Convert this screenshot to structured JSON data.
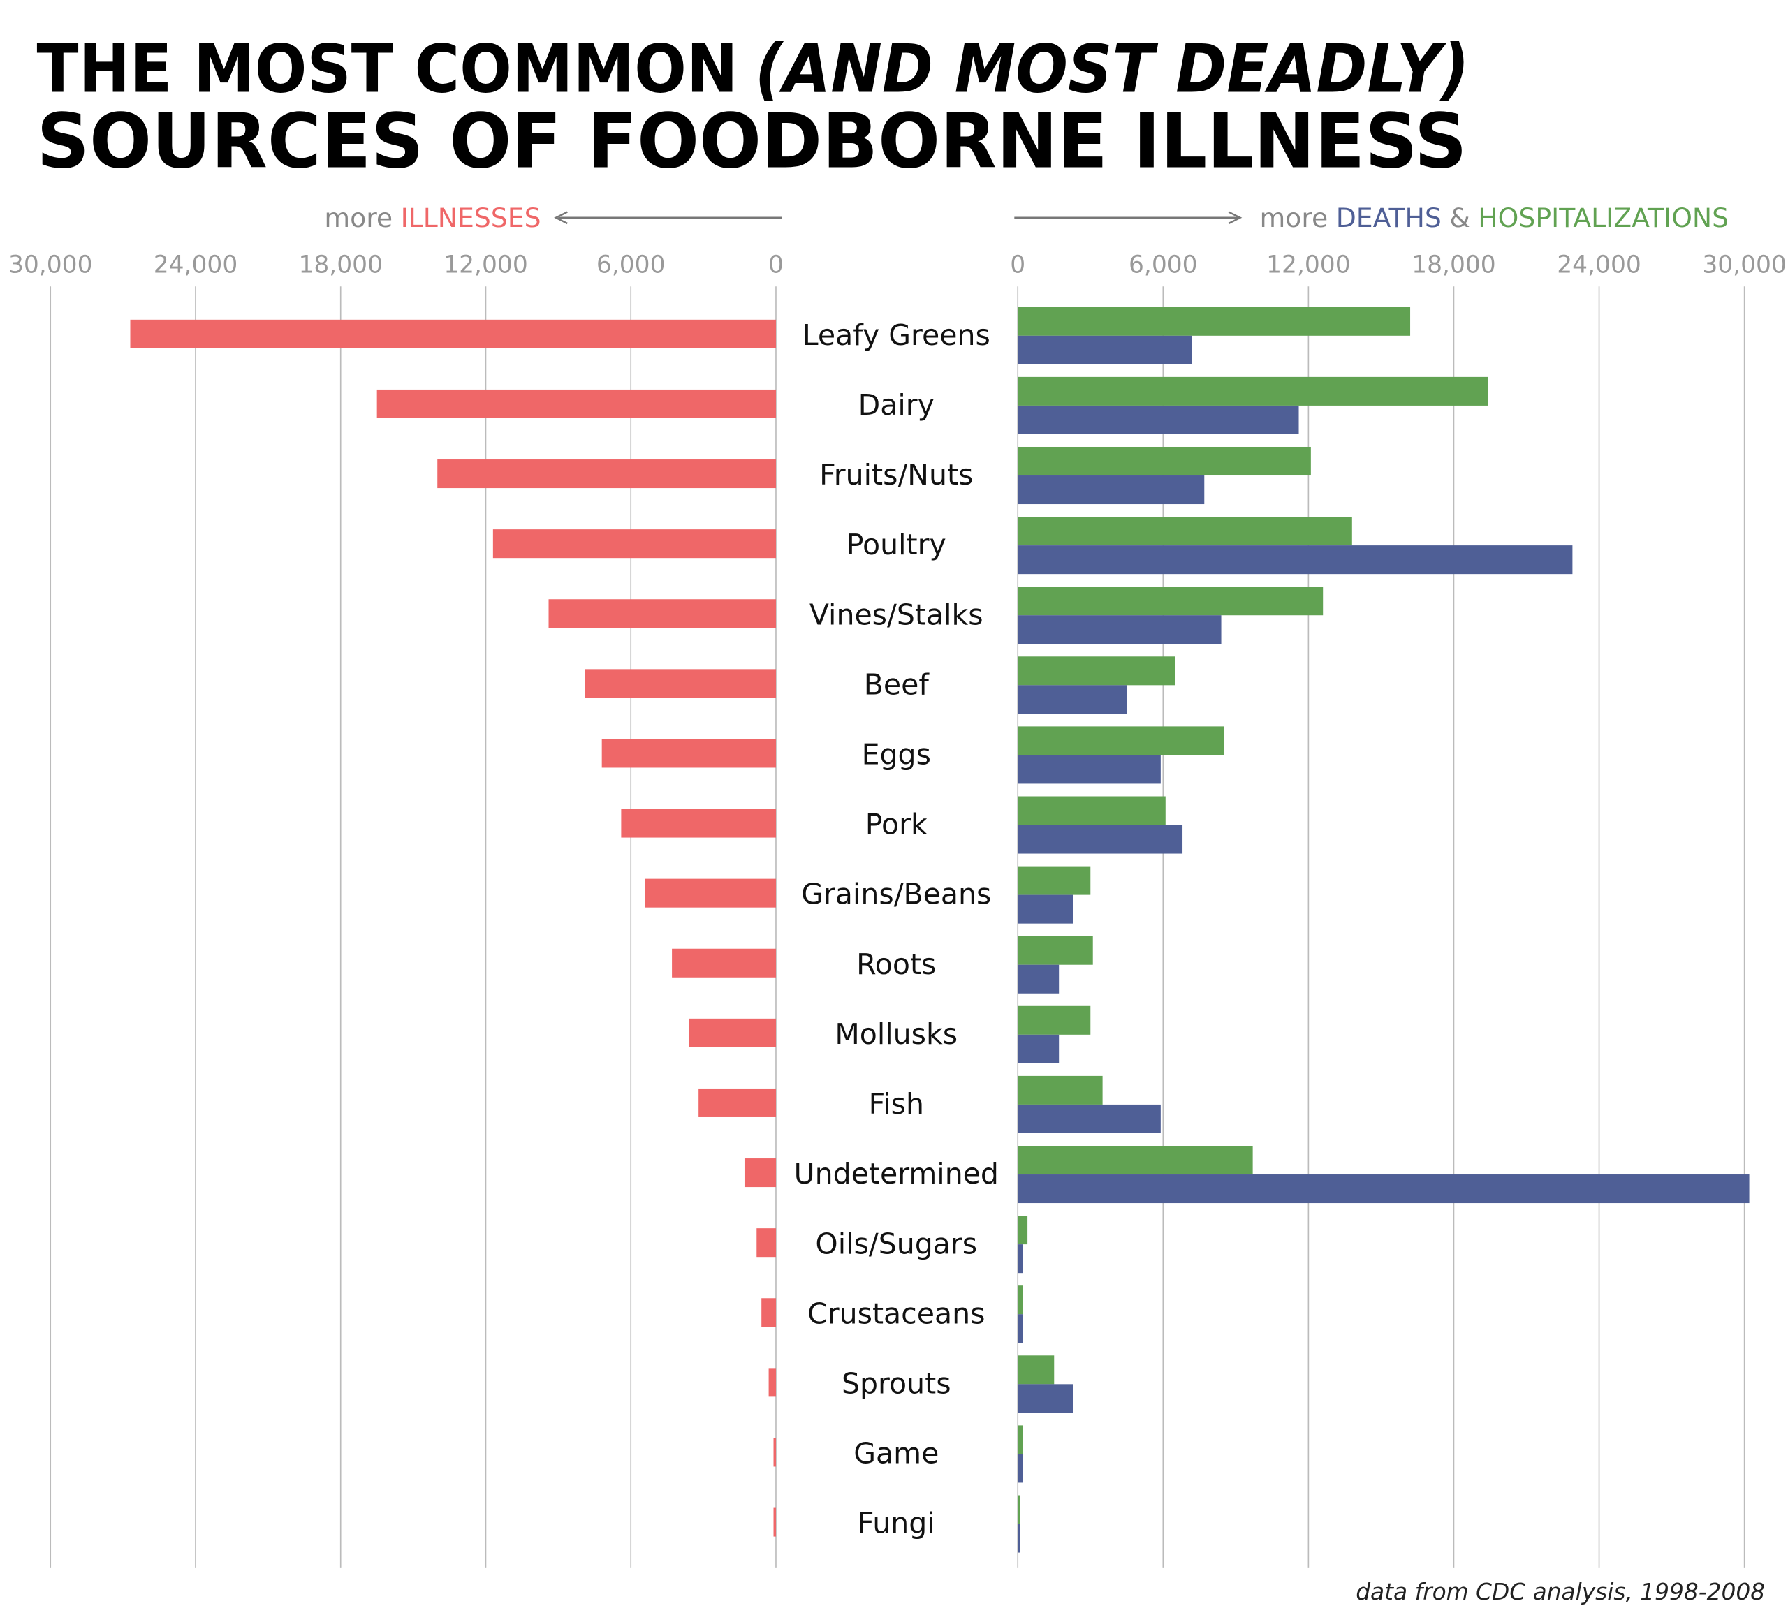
{
  "chart_data": [
    {
      "type": "bar",
      "orientation": "horizontal",
      "direction": "left",
      "title_line1": "THE MOST COMMON",
      "title_line1_italic": "(AND MOST DEADLY)",
      "title_line2": "SOURCES OF FOODBORNE ILLNESS",
      "categories": [
        "Leafy Greens",
        "Dairy",
        "Fruits/Nuts",
        "Poultry",
        "Vines/Stalks",
        "Beef",
        "Eggs",
        "Pork",
        "Grains/Beans",
        "Roots",
        "Mollusks",
        "Fish",
        "Undetermined",
        "Oils/Sugars",
        "Crustaceans",
        "Sprouts",
        "Game",
        "Fungi"
      ],
      "xlabel_prefix": "more",
      "series": [
        {
          "name": "ILLNESSES",
          "color": "#ef6768",
          "values": [
            26700,
            16500,
            14000,
            11700,
            9400,
            7900,
            7200,
            6400,
            5400,
            4300,
            3600,
            3200,
            1300,
            800,
            600,
            300,
            100,
            100
          ]
        }
      ],
      "xlim": [
        0,
        30000
      ],
      "xticks": [
        0,
        {
          "value": 6000,
          "label": "6,000"
        },
        {
          "value": 12000,
          "label": "12,000"
        },
        {
          "value": 18000,
          "label": "18,000"
        },
        {
          "value": 24000,
          "label": "24,000"
        },
        {
          "value": 30000,
          "label": "30,000"
        }
      ],
      "grid": true,
      "note": "data from CDC analysis, 1998-2008"
    },
    {
      "type": "bar",
      "orientation": "horizontal",
      "direction": "right",
      "xlabel_prefix": "more",
      "legend_joiner": "&",
      "series": [
        {
          "name": "HOSPITALIZATIONS",
          "color": "#61a252",
          "values": [
            16200,
            19400,
            12100,
            13800,
            12600,
            6500,
            8500,
            6100,
            3000,
            3100,
            3000,
            3500,
            9700,
            400,
            200,
            1500,
            200,
            100
          ]
        },
        {
          "name": "DEATHS",
          "color": "#4f5f96",
          "values": [
            7200,
            11600,
            7700,
            22900,
            8400,
            4500,
            5900,
            6800,
            2300,
            1700,
            1700,
            5900,
            30200,
            200,
            200,
            2300,
            200,
            100
          ]
        }
      ],
      "xlim": [
        0,
        30000
      ],
      "xticks": [
        0,
        {
          "value": 6000,
          "label": "6,000"
        },
        {
          "value": 12000,
          "label": "12,000"
        },
        {
          "value": 18000,
          "label": "18,000"
        },
        {
          "value": 24000,
          "label": "24,000"
        },
        {
          "value": 30000,
          "label": "30,000"
        }
      ],
      "grid": true
    }
  ]
}
